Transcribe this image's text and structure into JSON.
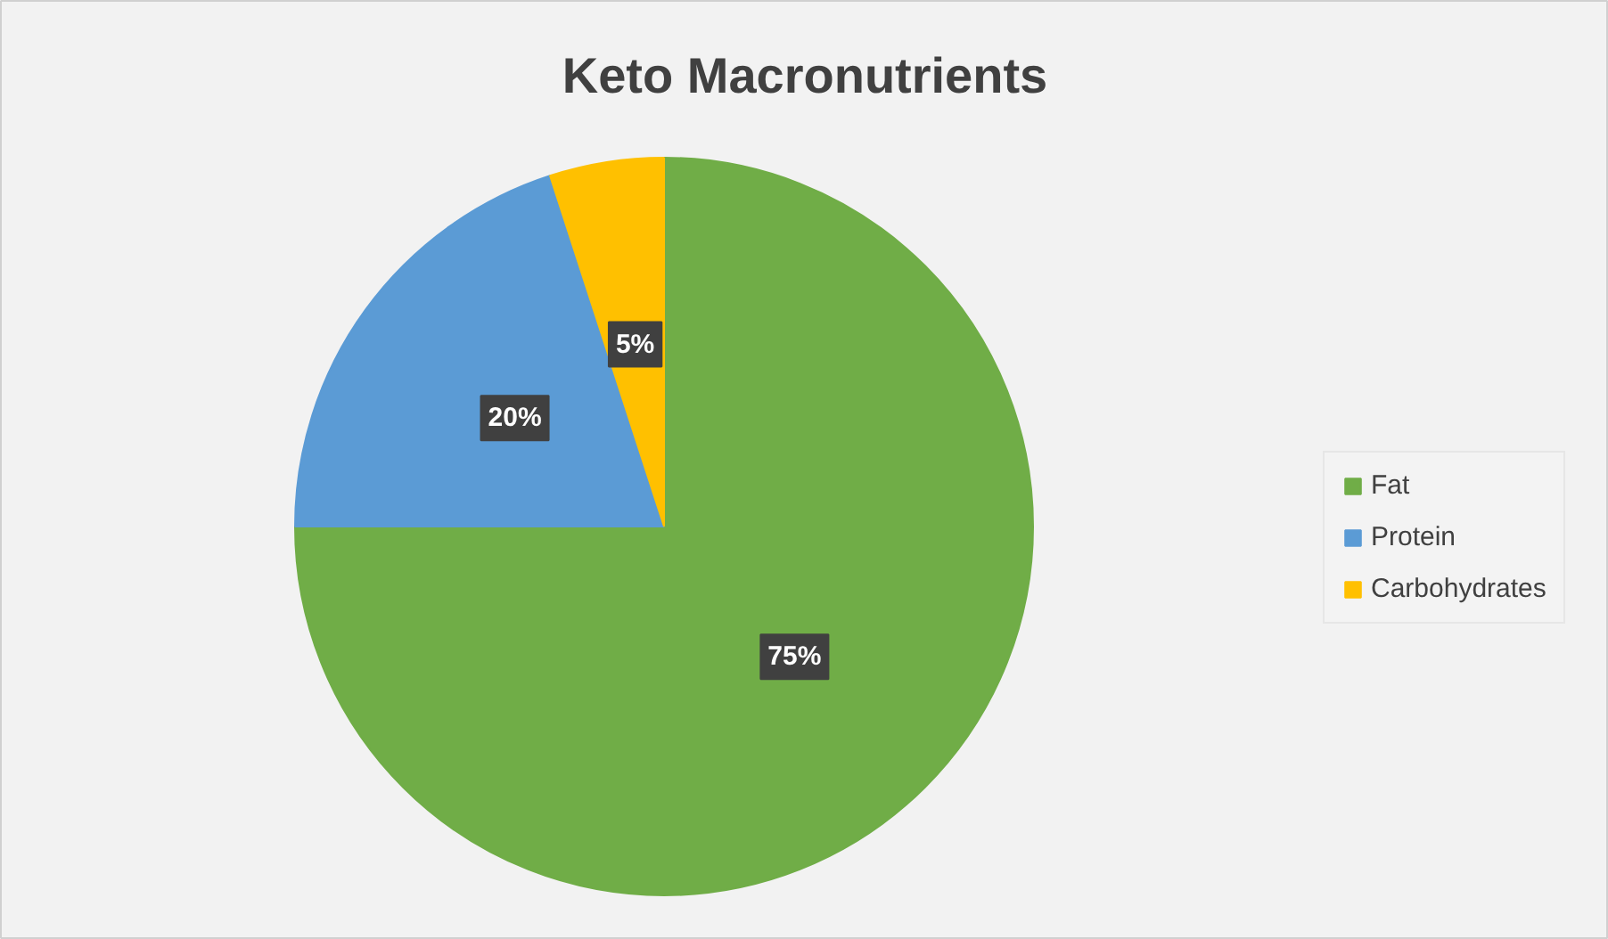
{
  "chart_data": {
    "type": "pie",
    "title": "Keto Macronutrients",
    "categories": [
      "Fat",
      "Protein",
      "Carbohydrates"
    ],
    "values": [
      75,
      20,
      5
    ],
    "colors": [
      "#70ad47",
      "#5b9bd5",
      "#ffc000"
    ],
    "value_labels": [
      "75%",
      "20%",
      "5%"
    ],
    "legend": "right"
  }
}
